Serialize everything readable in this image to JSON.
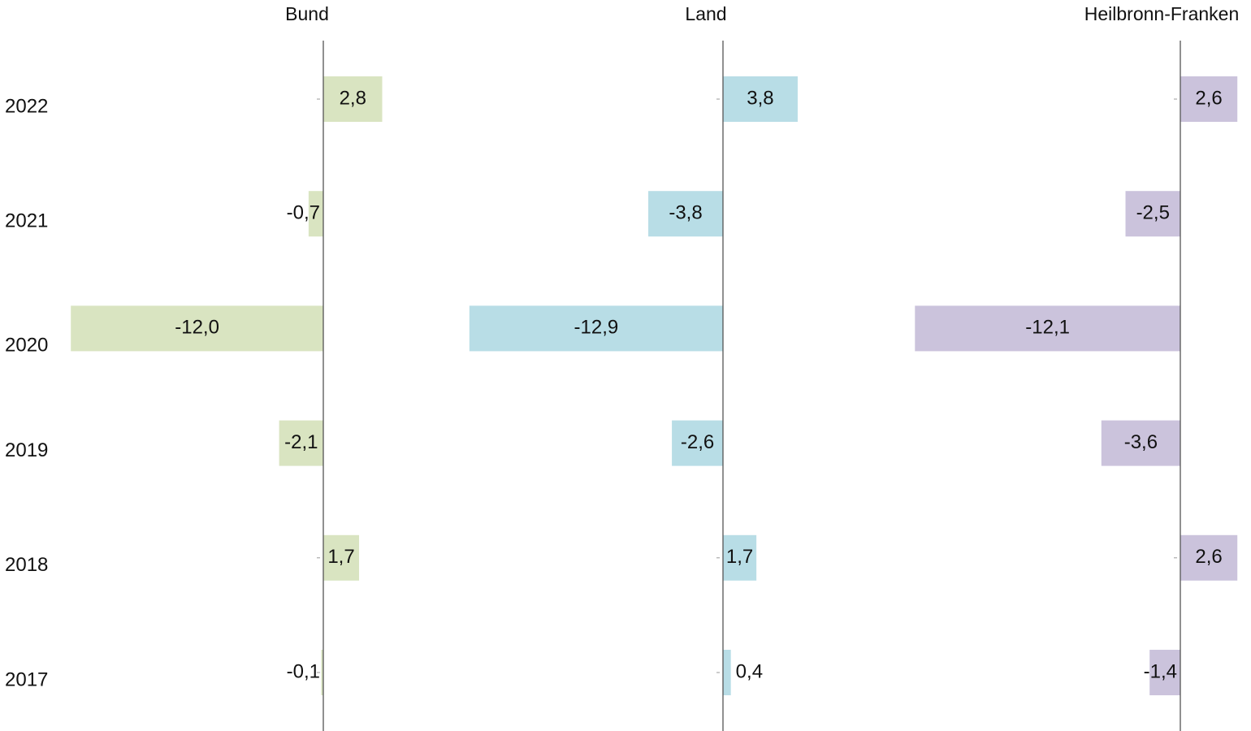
{
  "chart_data": {
    "type": "bar",
    "orientation": "horizontal",
    "categories": [
      "2022",
      "2021",
      "2020",
      "2019",
      "2018",
      "2017"
    ],
    "series": [
      {
        "name": "Bund",
        "color": "#d9e4c1",
        "values": [
          2.8,
          -0.7,
          -12.0,
          -2.1,
          1.7,
          -0.1
        ],
        "value_labels": [
          "2,8",
          "-0,7",
          "-12,0",
          "-2,1",
          "1,7",
          "-0,1"
        ]
      },
      {
        "name": "Land",
        "color": "#b8dde6",
        "values": [
          3.8,
          -3.8,
          -12.9,
          -2.6,
          1.7,
          0.4
        ],
        "value_labels": [
          "3,8",
          "-3,8",
          "-12,9",
          "-2,6",
          "1,7",
          "0,4"
        ]
      },
      {
        "name": "Heilbronn-Franken",
        "color": "#cbc3dc",
        "values": [
          2.6,
          -2.5,
          -12.1,
          -3.6,
          2.6,
          -1.4
        ],
        "value_labels": [
          "2,6",
          "-2,5",
          "-12,1",
          "-3,6",
          "2,6",
          "-1,4"
        ]
      }
    ]
  }
}
